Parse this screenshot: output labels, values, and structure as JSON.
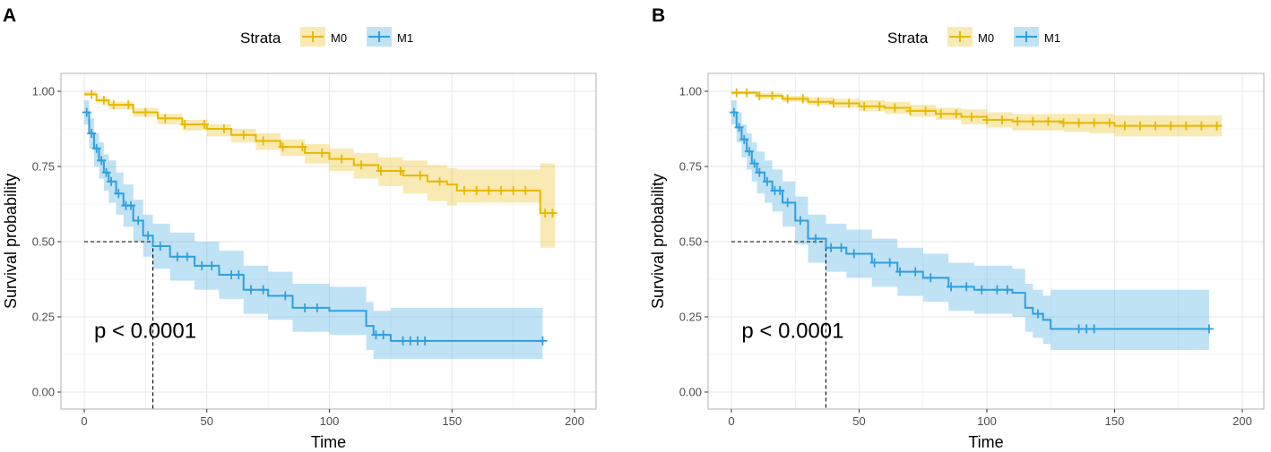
{
  "colors": {
    "m0": "#E7B800",
    "m1": "#2E9FDF",
    "grid": "#e6e6e6",
    "border": "#b3b3b3"
  },
  "chart_data": [
    {
      "type": "line",
      "panel_label": "A",
      "legend_title": "Strata",
      "xlabel": "Time",
      "ylabel": "Survival probability",
      "xlim": [
        0,
        200
      ],
      "ylim": [
        0,
        1
      ],
      "x_ticks": [
        "0",
        "50",
        "100",
        "150",
        "200"
      ],
      "y_ticks": [
        "0.00",
        "0.25",
        "0.50",
        "0.75",
        "1.00"
      ],
      "pvalue": "p < 0.0001",
      "median": {
        "x": 28,
        "y": 0.5
      },
      "series": [
        {
          "name": "M0",
          "color": "#E7B800",
          "x": [
            0,
            5,
            10,
            20,
            30,
            40,
            50,
            60,
            70,
            80,
            90,
            100,
            110,
            120,
            130,
            140,
            148,
            152,
            170,
            185,
            186,
            192
          ],
          "y": [
            0.99,
            0.97,
            0.955,
            0.93,
            0.91,
            0.89,
            0.875,
            0.855,
            0.835,
            0.815,
            0.795,
            0.775,
            0.755,
            0.735,
            0.72,
            0.7,
            0.69,
            0.67,
            0.67,
            0.67,
            0.595,
            0.595
          ],
          "lower": [
            0.985,
            0.96,
            0.94,
            0.915,
            0.89,
            0.87,
            0.85,
            0.83,
            0.805,
            0.785,
            0.76,
            0.735,
            0.71,
            0.685,
            0.66,
            0.635,
            0.62,
            0.63,
            0.63,
            0.63,
            0.48,
            0.48
          ],
          "upper": [
            1.0,
            0.98,
            0.965,
            0.945,
            0.925,
            0.905,
            0.89,
            0.875,
            0.86,
            0.84,
            0.825,
            0.81,
            0.795,
            0.78,
            0.77,
            0.755,
            0.745,
            0.74,
            0.74,
            0.74,
            0.76,
            0.76
          ],
          "censors": [
            3,
            8,
            12,
            18,
            25,
            33,
            41,
            49,
            57,
            65,
            73,
            81,
            89,
            97,
            105,
            113,
            121,
            129,
            137,
            145,
            155,
            160,
            165,
            170,
            175,
            180,
            188,
            191
          ]
        },
        {
          "name": "M1",
          "color": "#2E9FDF",
          "x": [
            0,
            2,
            4,
            6,
            8,
            10,
            13,
            16,
            20,
            24,
            28,
            35,
            45,
            55,
            65,
            75,
            85,
            100,
            115,
            118,
            125,
            140,
            150,
            187
          ],
          "y": [
            0.93,
            0.86,
            0.81,
            0.77,
            0.73,
            0.7,
            0.66,
            0.62,
            0.57,
            0.52,
            0.485,
            0.45,
            0.42,
            0.39,
            0.34,
            0.32,
            0.28,
            0.27,
            0.22,
            0.19,
            0.17,
            0.17,
            0.17,
            0.17
          ],
          "lower": [
            0.89,
            0.81,
            0.75,
            0.71,
            0.67,
            0.63,
            0.59,
            0.55,
            0.5,
            0.45,
            0.41,
            0.37,
            0.34,
            0.31,
            0.26,
            0.24,
            0.2,
            0.19,
            0.14,
            0.11,
            0.11,
            0.11,
            0.11,
            0.11
          ],
          "upper": [
            0.97,
            0.91,
            0.86,
            0.83,
            0.79,
            0.77,
            0.73,
            0.69,
            0.64,
            0.59,
            0.56,
            0.53,
            0.5,
            0.47,
            0.42,
            0.4,
            0.36,
            0.35,
            0.3,
            0.27,
            0.28,
            0.28,
            0.28,
            0.28
          ]
        }
      ],
      "m1_censors": [
        1,
        3,
        5,
        7,
        9,
        11,
        14,
        17,
        19,
        22,
        26,
        31,
        38,
        42,
        48,
        52,
        60,
        63,
        68,
        73,
        82,
        90,
        95,
        119,
        122,
        130,
        133,
        136,
        139,
        187
      ]
    },
    {
      "type": "line",
      "panel_label": "B",
      "legend_title": "Strata",
      "xlabel": "Time",
      "ylabel": "Survival probability",
      "xlim": [
        0,
        200
      ],
      "ylim": [
        0,
        1
      ],
      "x_ticks": [
        "0",
        "50",
        "100",
        "150",
        "200"
      ],
      "y_ticks": [
        "0.00",
        "0.25",
        "0.50",
        "0.75",
        "1.00"
      ],
      "pvalue": "p < 0.0001",
      "median": {
        "x": 37,
        "y": 0.5
      },
      "series": [
        {
          "name": "M0",
          "color": "#E7B800",
          "x": [
            0,
            10,
            20,
            30,
            40,
            50,
            60,
            70,
            80,
            90,
            100,
            110,
            120,
            130,
            140,
            150,
            160,
            180,
            192
          ],
          "y": [
            0.995,
            0.985,
            0.975,
            0.965,
            0.96,
            0.95,
            0.945,
            0.935,
            0.925,
            0.915,
            0.905,
            0.9,
            0.9,
            0.895,
            0.895,
            0.885,
            0.885,
            0.885,
            0.885
          ],
          "lower": [
            0.99,
            0.975,
            0.965,
            0.955,
            0.945,
            0.935,
            0.925,
            0.915,
            0.905,
            0.89,
            0.88,
            0.87,
            0.87,
            0.865,
            0.86,
            0.85,
            0.85,
            0.85,
            0.85
          ],
          "upper": [
            1.0,
            0.995,
            0.985,
            0.98,
            0.975,
            0.97,
            0.965,
            0.955,
            0.945,
            0.94,
            0.93,
            0.925,
            0.925,
            0.925,
            0.925,
            0.92,
            0.92,
            0.92,
            0.92
          ],
          "censors": [
            2,
            6,
            11,
            16,
            22,
            28,
            34,
            40,
            46,
            52,
            58,
            64,
            70,
            76,
            82,
            88,
            94,
            100,
            106,
            112,
            118,
            124,
            130,
            136,
            142,
            148,
            154,
            160,
            166,
            172,
            178,
            184,
            190
          ]
        },
        {
          "name": "M1",
          "color": "#2E9FDF",
          "x": [
            0,
            2,
            4,
            6,
            8,
            10,
            13,
            16,
            20,
            25,
            30,
            37,
            45,
            55,
            65,
            75,
            85,
            95,
            110,
            115,
            118,
            122,
            125,
            150,
            187
          ],
          "y": [
            0.93,
            0.88,
            0.84,
            0.8,
            0.76,
            0.73,
            0.7,
            0.67,
            0.63,
            0.57,
            0.51,
            0.48,
            0.46,
            0.43,
            0.4,
            0.38,
            0.35,
            0.34,
            0.33,
            0.28,
            0.26,
            0.24,
            0.21,
            0.21,
            0.21
          ],
          "lower": [
            0.89,
            0.83,
            0.78,
            0.74,
            0.7,
            0.66,
            0.63,
            0.6,
            0.55,
            0.49,
            0.43,
            0.4,
            0.38,
            0.35,
            0.32,
            0.3,
            0.27,
            0.26,
            0.25,
            0.2,
            0.18,
            0.16,
            0.14,
            0.14,
            0.14
          ],
          "upper": [
            0.97,
            0.93,
            0.89,
            0.86,
            0.83,
            0.8,
            0.77,
            0.74,
            0.7,
            0.65,
            0.59,
            0.56,
            0.54,
            0.51,
            0.48,
            0.46,
            0.43,
            0.42,
            0.41,
            0.36,
            0.34,
            0.32,
            0.34,
            0.34,
            0.34
          ]
        }
      ],
      "m1_censors": [
        1,
        3,
        5,
        7,
        9,
        11,
        14,
        17,
        19,
        22,
        27,
        33,
        39,
        43,
        48,
        56,
        62,
        66,
        72,
        78,
        86,
        92,
        98,
        104,
        108,
        120,
        136,
        139,
        142,
        187
      ]
    }
  ]
}
